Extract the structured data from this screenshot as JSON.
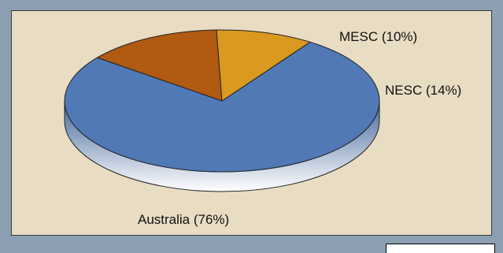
{
  "chart_data": {
    "type": "pie",
    "title": "",
    "categories": [
      "Australia",
      "NESC",
      "MESC"
    ],
    "values": [
      76,
      14,
      10
    ],
    "labels": [
      "Australia (76%)",
      "NESC (14%)",
      "MESC (10%)"
    ],
    "colors": {
      "Australia": "#5079b5",
      "NESC": "#b05a12",
      "MESC": "#d99a1f"
    },
    "style": "3d"
  }
}
